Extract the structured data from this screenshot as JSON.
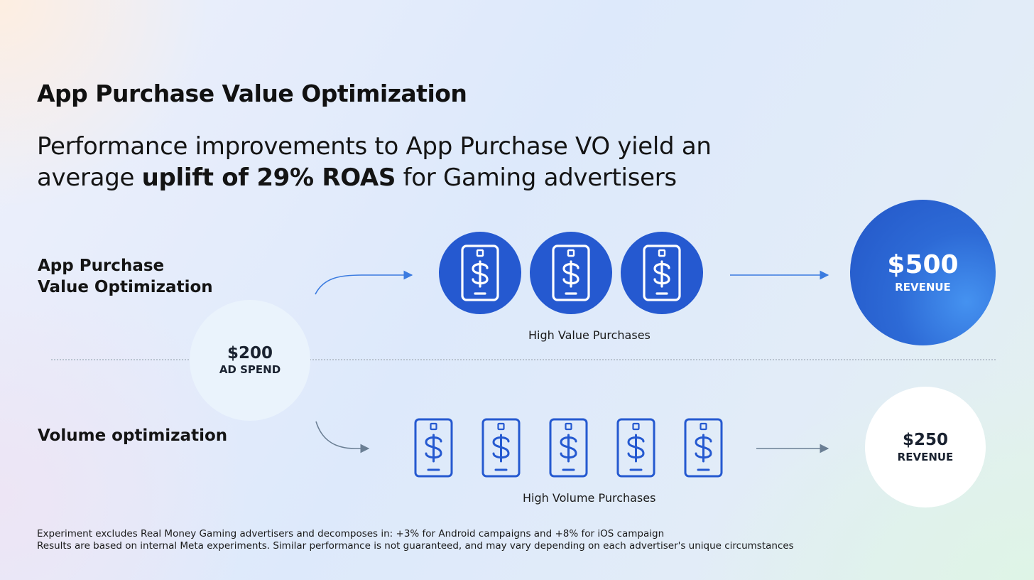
{
  "title": "App Purchase Value Optimization",
  "subtitle": {
    "line1": "Performance improvements to App Purchase VO yield an",
    "line2_prefix": "average ",
    "line2_bold": "uplift of 29% ROAS",
    "line2_suffix": " for Gaming advertisers"
  },
  "rows": {
    "value_opt": {
      "label_line1": "App Purchase",
      "label_line2": "Value Optimization"
    },
    "volume_opt": {
      "label": "Volume optimization"
    }
  },
  "ad_spend": {
    "amount": "$200",
    "label": "AD SPEND"
  },
  "value_outcome": {
    "amount": "$500",
    "label": "REVENUE",
    "caption": "High Value Purchases"
  },
  "volume_outcome": {
    "amount": "$250",
    "label": "REVENUE",
    "caption": "High Volume Purchases"
  },
  "icons": {
    "purchase": "phone-dollar-icon",
    "arrow": "arrow-right-icon"
  },
  "colors": {
    "accent": "#2559d0",
    "arrow_blue": "#3b7be0",
    "arrow_gray": "#6b7f94"
  },
  "footnotes": [
    "Experiment excludes Real Money Gaming advertisers  and decomposes in: +3% for Android campaigns and +8% for iOS campaign",
    "Results are based on internal Meta experiments. Similar performance is not guaranteed, and may vary depending on each advertiser's unique circumstances"
  ]
}
